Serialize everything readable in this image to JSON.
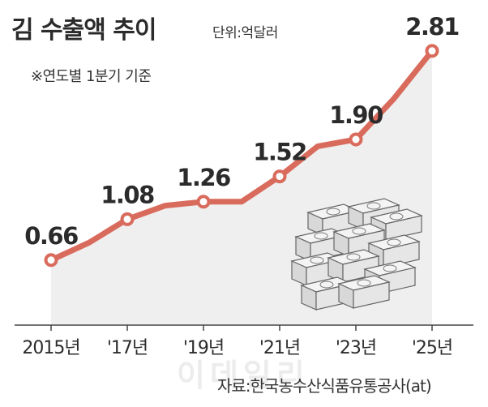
{
  "header": {
    "title": "김 수출액 추이",
    "unit": "단위:억달러",
    "note": "※연도별 1분기 기준"
  },
  "footer": {
    "source": "자료:한국농수산식품유통공사(at)",
    "watermark": "이데일리"
  },
  "colors": {
    "line": "#d96b5c",
    "area": "#efefef",
    "marker_fill": "#ffffff",
    "text": "#2b2b2b"
  },
  "illustration": "stacked-laver-bundles-icon",
  "chart_data": {
    "type": "line",
    "title": "김 수출액 추이",
    "unit": "억달러",
    "x": [
      2015,
      2016,
      2017,
      2018,
      2019,
      2020,
      2021,
      2022,
      2023,
      2024,
      2025
    ],
    "y": [
      0.66,
      0.84,
      1.08,
      1.22,
      1.26,
      1.26,
      1.52,
      1.83,
      1.9,
      2.32,
      2.81
    ],
    "labeled_points": [
      {
        "x": 2015,
        "label": "0.66"
      },
      {
        "x": 2017,
        "label": "1.08"
      },
      {
        "x": 2019,
        "label": "1.26"
      },
      {
        "x": 2021,
        "label": "1.52"
      },
      {
        "x": 2023,
        "label": "1.90"
      },
      {
        "x": 2025,
        "label": "2.81"
      }
    ],
    "x_ticks": [
      {
        "x": 2015,
        "label": "2015년"
      },
      {
        "x": 2017,
        "label": "'17년"
      },
      {
        "x": 2019,
        "label": "'19년"
      },
      {
        "x": 2021,
        "label": "'21년"
      },
      {
        "x": 2023,
        "label": "'23년"
      },
      {
        "x": 2025,
        "label": "'25년"
      }
    ],
    "xlim": [
      2015,
      2025
    ],
    "ylim": [
      0,
      3.0
    ],
    "grid": false,
    "legend": "none"
  }
}
